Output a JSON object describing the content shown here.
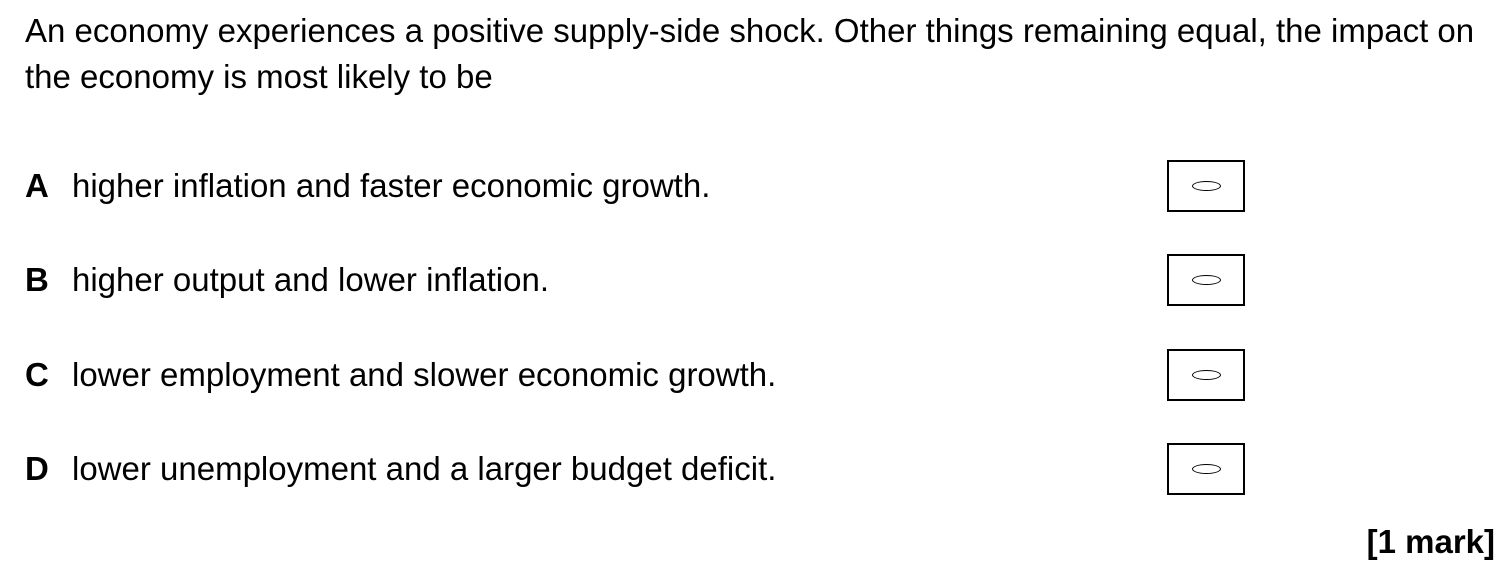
{
  "question": {
    "text": "An economy experiences a positive supply-side shock.  Other things remaining equal, the impact on the economy is most likely to be"
  },
  "options": [
    {
      "letter": "A",
      "text": "higher inflation and faster economic growth."
    },
    {
      "letter": "B",
      "text": "higher output and lower inflation."
    },
    {
      "letter": "C",
      "text": "lower employment and slower economic growth."
    },
    {
      "letter": "D",
      "text": "lower unemployment and a larger budget deficit."
    }
  ],
  "marks": "[1 mark]"
}
